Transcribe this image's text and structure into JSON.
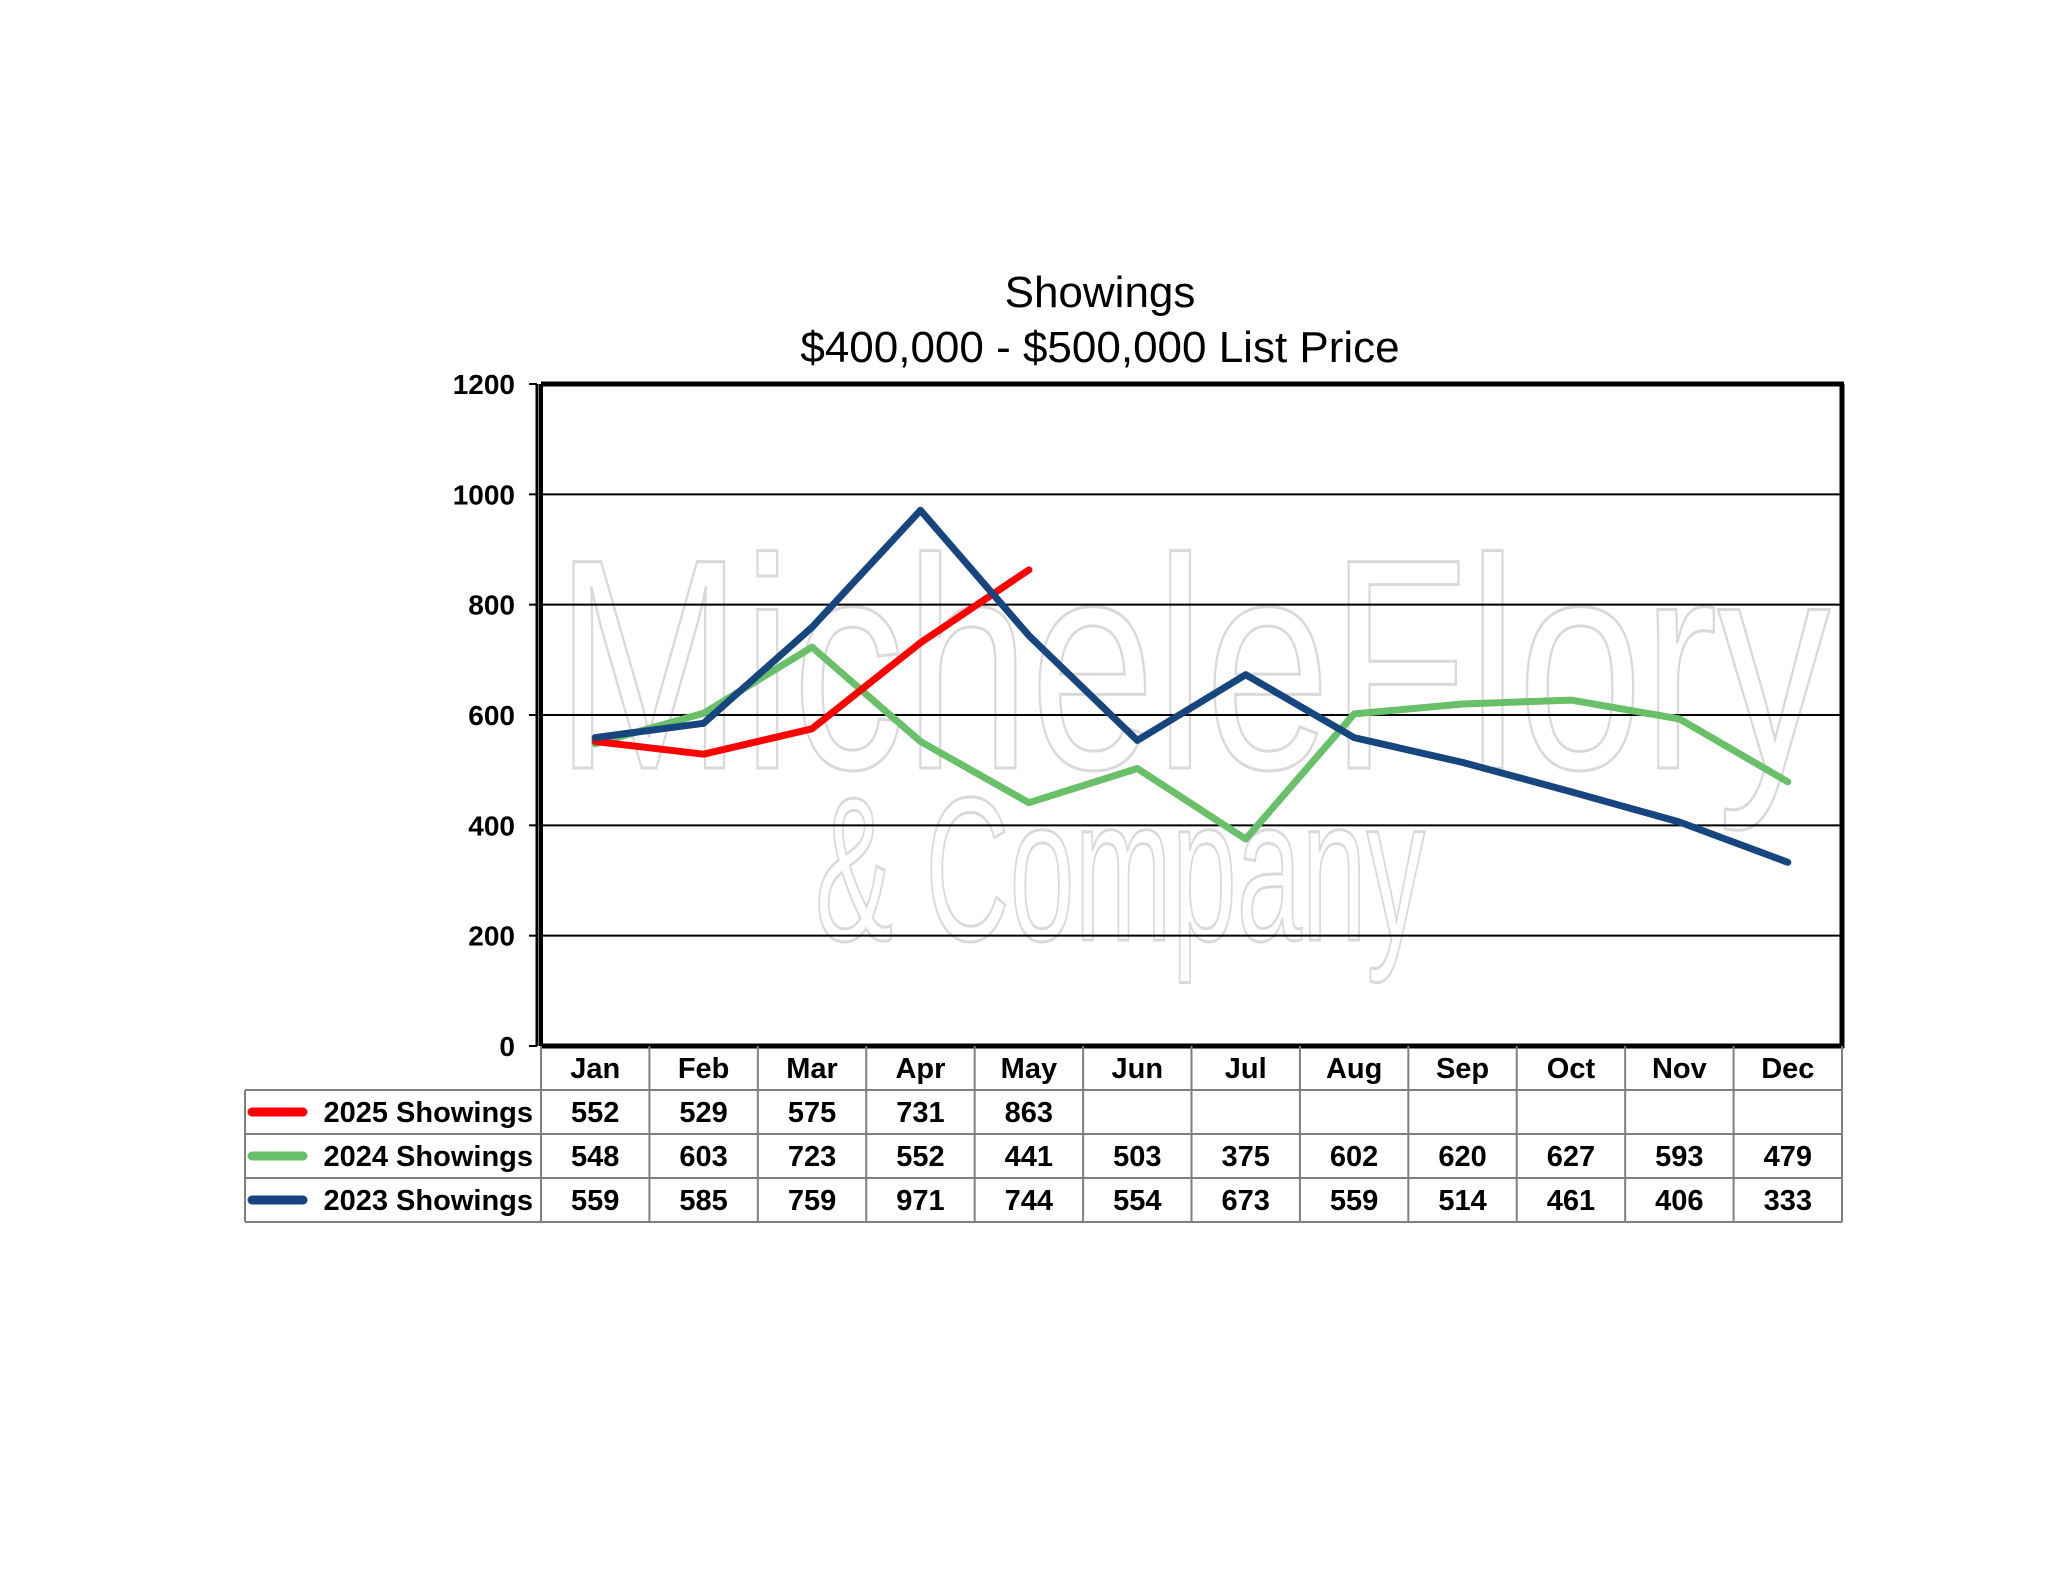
{
  "chart_data": {
    "type": "line",
    "title": "Showings",
    "subtitle": "$400,000 - $500,000 List Price",
    "categories": [
      "Jan",
      "Feb",
      "Mar",
      "Apr",
      "May",
      "Jun",
      "Jul",
      "Aug",
      "Sep",
      "Oct",
      "Nov",
      "Dec"
    ],
    "ylim": [
      0,
      1200
    ],
    "yticks": [
      "0",
      "200",
      "400",
      "600",
      "800",
      "1000",
      "1200"
    ],
    "grid": true,
    "legend": "data-table-below",
    "series": [
      {
        "name": "2025 Showings",
        "color": "#ff0000",
        "values": [
          552,
          529,
          575,
          731,
          863,
          null,
          null,
          null,
          null,
          null,
          null,
          null
        ]
      },
      {
        "name": "2024 Showings",
        "color": "#6abf69",
        "values": [
          548,
          603,
          723,
          552,
          441,
          503,
          375,
          602,
          620,
          627,
          593,
          479
        ]
      },
      {
        "name": "2023 Showings",
        "color": "#17467e",
        "values": [
          559,
          585,
          759,
          971,
          744,
          554,
          673,
          559,
          514,
          461,
          406,
          333
        ]
      }
    ]
  },
  "watermark": {
    "line1": "MicheleFlory",
    "line2": "& Company"
  }
}
